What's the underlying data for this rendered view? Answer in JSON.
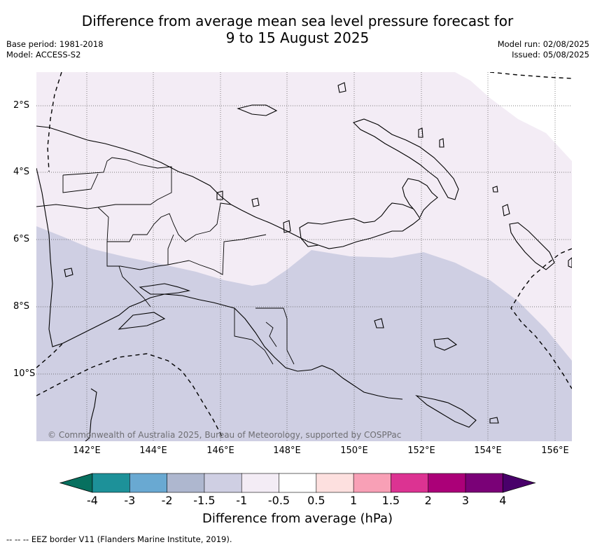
{
  "title": {
    "line1": "Difference from average mean sea level pressure forecast for",
    "line2": "9 to 15 August 2025"
  },
  "meta": {
    "base_period": "Base period: 1981-2018",
    "model": "Model: ACCESS-S2",
    "model_run": "Model run: 02/08/2025",
    "issued": "Issued: 05/08/2025"
  },
  "map": {
    "region": "Papua New Guinea",
    "x_ticks": [
      "142°E",
      "144°E",
      "146°E",
      "148°E",
      "150°E",
      "152°E",
      "154°E",
      "156°E"
    ],
    "y_ticks": [
      "2°S",
      "4°S",
      "6°S",
      "8°S",
      "10°S"
    ],
    "gridlines": true,
    "fill_levels": [
      {
        "range": "-1 to -0.5",
        "color": "#f3ecf5"
      },
      {
        "range": "-1.5 to -1",
        "color": "#cfcfe3"
      },
      {
        "range": "-0.5 to 0.5",
        "color": "#ffffff"
      }
    ],
    "copyright": "© Commonwealth of Australia 2025, Bureau of Meteorology, supported by COSPPac"
  },
  "colorbar": {
    "title": "Difference from average (hPa)",
    "ticks": [
      "-4",
      "-3",
      "-2",
      "-1.5",
      "-1",
      "-0.5",
      "0.5",
      "1",
      "1.5",
      "2",
      "3",
      "4"
    ],
    "colors": [
      "#07705f",
      "#1d9199",
      "#69a9d2",
      "#aeb7cf",
      "#cfcfe3",
      "#f3ecf5",
      "#ffffff",
      "#fde0df",
      "#f8a0b6",
      "#dc3392",
      "#ab0078",
      "#7a0177",
      "#49006a"
    ]
  },
  "footer": {
    "eez_note": "-- -- -- EEZ border V11 (Flanders Marine Institute, 2019)."
  }
}
